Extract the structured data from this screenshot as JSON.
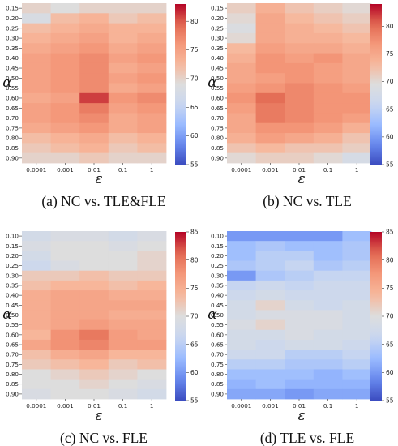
{
  "colormap": {
    "name": "coolwarm",
    "stops": [
      "#3b4cc0",
      "#6788ee",
      "#9abbff",
      "#c9d7f0",
      "#dddddd",
      "#f7b89c",
      "#f4987a",
      "#e26952",
      "#b40426"
    ]
  },
  "chart_data": [
    {
      "type": "heatmap",
      "caption": "(a) NC vs. TLE&FLE",
      "xlabel": "ε",
      "ylabel": "α",
      "x_categories": [
        "0.0001",
        "0.001",
        "0.01",
        "0.1",
        "1"
      ],
      "y_categories": [
        "0.15",
        "0.20",
        "0.25",
        "0.30",
        "0.35",
        "0.40",
        "0.45",
        "0.50",
        "0.55",
        "0.60",
        "0.65",
        "0.70",
        "0.75",
        "0.80",
        "0.85",
        "0.90"
      ],
      "values": [
        [
          70,
          69,
          70,
          70,
          70
        ],
        [
          68,
          72,
          73,
          71,
          72
        ],
        [
          72,
          73,
          74,
          73,
          73
        ],
        [
          73,
          74,
          75,
          73,
          74
        ],
        [
          74,
          75,
          76,
          74,
          75
        ],
        [
          75,
          76,
          77,
          75,
          76
        ],
        [
          75,
          76,
          77,
          74,
          75
        ],
        [
          75,
          76,
          77,
          75,
          76
        ],
        [
          75,
          76,
          77,
          74,
          75
        ],
        [
          74,
          75,
          81,
          76,
          77
        ],
        [
          75,
          76,
          78,
          75,
          76
        ],
        [
          75,
          76,
          77,
          74,
          75
        ],
        [
          74,
          75,
          76,
          74,
          75
        ],
        [
          72,
          73,
          74,
          72,
          73
        ],
        [
          71,
          72,
          73,
          71,
          72
        ],
        [
          70,
          70,
          71,
          70,
          70
        ]
      ],
      "colorbar": {
        "min": 55,
        "max": 83,
        "ticks": [
          55,
          60,
          65,
          70,
          75,
          80
        ]
      }
    },
    {
      "type": "heatmap",
      "caption": "(b) NC vs. TLE",
      "xlabel": "ε",
      "ylabel": "α",
      "x_categories": [
        "0.0001",
        "0.001",
        "0.01",
        "0.1",
        "1"
      ],
      "y_categories": [
        "0.15",
        "0.20",
        "0.25",
        "0.30",
        "0.35",
        "0.40",
        "0.45",
        "0.50",
        "0.55",
        "0.60",
        "0.65",
        "0.70",
        "0.75",
        "0.80",
        "0.85",
        "0.90"
      ],
      "values": [
        [
          71,
          74,
          72,
          71,
          70
        ],
        [
          70,
          75,
          73,
          72,
          71
        ],
        [
          69,
          75,
          74,
          73,
          72
        ],
        [
          70,
          75,
          74,
          74,
          73
        ],
        [
          73,
          76,
          75,
          75,
          74
        ],
        [
          74,
          77,
          76,
          77,
          75
        ],
        [
          75,
          77,
          77,
          76,
          75
        ],
        [
          75,
          76,
          77,
          76,
          75
        ],
        [
          76,
          77,
          78,
          77,
          76
        ],
        [
          77,
          80,
          78,
          77,
          77
        ],
        [
          76,
          79,
          78,
          77,
          77
        ],
        [
          75,
          79,
          78,
          77,
          76
        ],
        [
          75,
          77,
          77,
          76,
          74
        ],
        [
          74,
          76,
          75,
          74,
          72
        ],
        [
          72,
          73,
          72,
          72,
          71
        ],
        [
          70,
          71,
          71,
          70,
          68
        ]
      ],
      "colorbar": {
        "min": 55,
        "max": 84,
        "ticks": [
          55,
          60,
          65,
          70,
          75,
          80
        ]
      }
    },
    {
      "type": "heatmap",
      "caption": "(c) NC vs. FLE",
      "xlabel": "ε",
      "ylabel": "α",
      "x_categories": [
        "0.0001",
        "0.001",
        "0.01",
        "0.1",
        "1"
      ],
      "y_categories": [
        "0.10",
        "0.15",
        "0.20",
        "0.25",
        "0.30",
        "0.35",
        "0.40",
        "0.45",
        "0.50",
        "0.55",
        "0.60",
        "0.65",
        "0.70",
        "0.75",
        "0.80",
        "0.85",
        "0.90"
      ],
      "values": [
        [
          68,
          69,
          69,
          68,
          69
        ],
        [
          69,
          70,
          70,
          69,
          70
        ],
        [
          68,
          70,
          70,
          70,
          71
        ],
        [
          67,
          69,
          70,
          70,
          71
        ],
        [
          72,
          72,
          73,
          72,
          72
        ],
        [
          73,
          74,
          74,
          73,
          74
        ],
        [
          75,
          76,
          76,
          75,
          75
        ],
        [
          75,
          76,
          76,
          76,
          76
        ],
        [
          75,
          76,
          76,
          75,
          75
        ],
        [
          75,
          76,
          77,
          76,
          76
        ],
        [
          74,
          78,
          80,
          77,
          76
        ],
        [
          76,
          78,
          79,
          77,
          77
        ],
        [
          73,
          75,
          76,
          74,
          74
        ],
        [
          72,
          73,
          74,
          72,
          73
        ],
        [
          70,
          71,
          72,
          71,
          70
        ],
        [
          70,
          70,
          71,
          70,
          69
        ],
        [
          69,
          70,
          70,
          69,
          68
        ]
      ],
      "colorbar": {
        "min": 55,
        "max": 85,
        "ticks": [
          55,
          60,
          65,
          70,
          75,
          80,
          85
        ]
      }
    },
    {
      "type": "heatmap",
      "caption": "(d) TLE vs. FLE",
      "xlabel": "ε",
      "ylabel": "α",
      "x_categories": [
        "0.0001",
        "0.001",
        "0.01",
        "0.1",
        "1"
      ],
      "y_categories": [
        "0.10",
        "0.15",
        "0.20",
        "0.25",
        "0.30",
        "0.35",
        "0.40",
        "0.45",
        "0.50",
        "0.55",
        "0.60",
        "0.65",
        "0.70",
        "0.75",
        "0.80",
        "0.85",
        "0.90"
      ],
      "values": [
        [
          60,
          60,
          60,
          60,
          63
        ],
        [
          63,
          64,
          63,
          63,
          64
        ],
        [
          63,
          65,
          65,
          63,
          64
        ],
        [
          64,
          65,
          66,
          64,
          65
        ],
        [
          60,
          64,
          65,
          66,
          66
        ],
        [
          66,
          67,
          66,
          67,
          67
        ],
        [
          67,
          68,
          67,
          67,
          67
        ],
        [
          68,
          71,
          68,
          67,
          68
        ],
        [
          68,
          69,
          69,
          69,
          68
        ],
        [
          69,
          71,
          69,
          69,
          68
        ],
        [
          68,
          68,
          69,
          68,
          68
        ],
        [
          68,
          67,
          68,
          68,
          67
        ],
        [
          67,
          67,
          65,
          65,
          66
        ],
        [
          65,
          65,
          64,
          64,
          65
        ],
        [
          63,
          63,
          63,
          62,
          63
        ],
        [
          62,
          63,
          62,
          62,
          62
        ],
        [
          61,
          61,
          60,
          61,
          61
        ]
      ],
      "colorbar": {
        "min": 55,
        "max": 85,
        "ticks": [
          55,
          60,
          65,
          70,
          75,
          80,
          85
        ]
      }
    }
  ]
}
